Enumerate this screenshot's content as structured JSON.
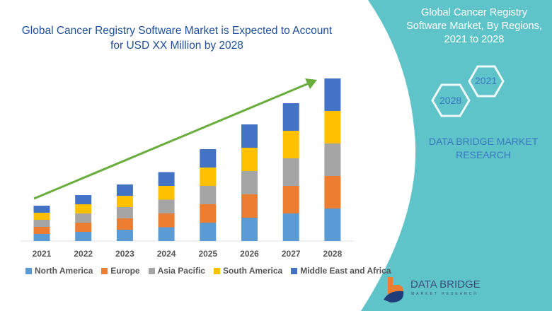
{
  "header": {
    "title": "Global Cancer Registry Software Market is Expected to Account for USD XX Million by 2028"
  },
  "side_panel": {
    "title": "Global Cancer Registry Software Market, By Regions, 2021 to 2028",
    "hex_start_year": "2021",
    "hex_end_year": "2028",
    "brand_text": "DATA BRIDGE MARKET RESEARCH",
    "panel_color": "#5fc4c9"
  },
  "logo": {
    "name": "DATA BRIDGE",
    "tagline": "MARKET RESEARCH"
  },
  "chart_data": {
    "type": "bar",
    "stacked": true,
    "title": "",
    "xlabel": "",
    "ylabel": "",
    "y_axis_visible": false,
    "grid": false,
    "legend_position": "bottom",
    "trend_arrow": true,
    "categories": [
      "2021",
      "2022",
      "2023",
      "2024",
      "2025",
      "2026",
      "2027",
      "2028"
    ],
    "series": [
      {
        "name": "North America",
        "color": "#5b9bd5",
        "values": [
          10,
          13,
          16,
          19.5,
          26,
          33,
          39,
          46
        ]
      },
      {
        "name": "Europe",
        "color": "#ed7d31",
        "values": [
          10,
          13,
          16,
          19.5,
          26,
          33,
          39,
          46
        ]
      },
      {
        "name": "Asia Pacific",
        "color": "#a5a5a5",
        "values": [
          10,
          13,
          16,
          19.5,
          26,
          33,
          39,
          46
        ]
      },
      {
        "name": "South America",
        "color": "#ffc000",
        "values": [
          10,
          13,
          16,
          19.5,
          26,
          33,
          39,
          46
        ]
      },
      {
        "name": "Middle East and Africa",
        "color": "#4472c4",
        "values": [
          10,
          13,
          16,
          19.5,
          26,
          33,
          39,
          46
        ]
      }
    ],
    "arrow_color": "#6aad3d"
  }
}
